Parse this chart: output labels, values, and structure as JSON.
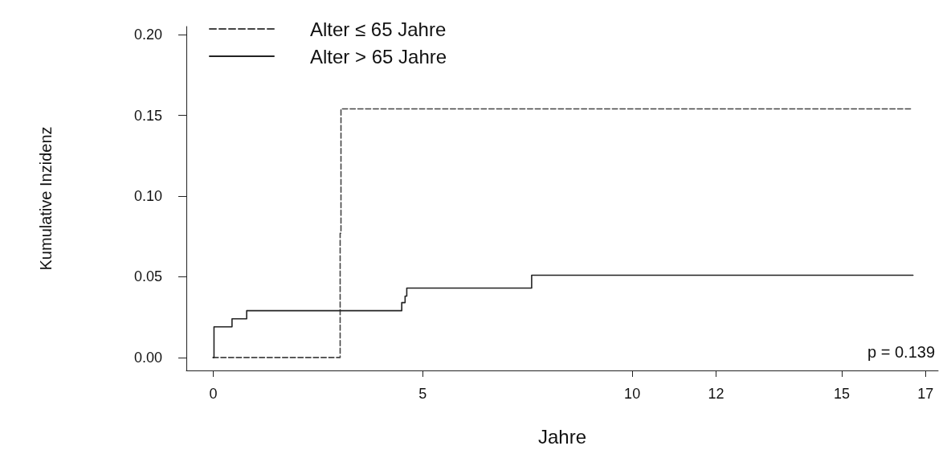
{
  "chart_data": {
    "type": "step",
    "xlabel": "Jahre",
    "ylabel": "Kumulative Inzidenz",
    "xlim": [
      -0.64,
      17.3
    ],
    "ylim": [
      -0.008,
      0.205
    ],
    "xticks": [
      0,
      5,
      10,
      12,
      15,
      17
    ],
    "yticks": [
      {
        "value": 0,
        "label": "0.00"
      },
      {
        "value": 0.05,
        "label": "0.05"
      },
      {
        "value": 0.1,
        "label": "0.10"
      },
      {
        "value": 0.15,
        "label": "0.15"
      },
      {
        "value": 0.2,
        "label": "0.20"
      }
    ],
    "grid": false,
    "legend": "top left",
    "marker": "none",
    "series": [
      {
        "name": "Alter ≤ 65 Jahre",
        "color": "#444444",
        "line_style": "dashed",
        "x": [
          0,
          3.03,
          3.05,
          16.7
        ],
        "values": [
          0,
          0.077,
          0.154,
          0.154
        ]
      },
      {
        "name": "Alter > 65 Jahre",
        "color": "#222222",
        "line_style": "solid",
        "x": [
          0,
          0.02,
          0.45,
          0.8,
          4.5,
          4.58,
          4.62,
          7.6,
          16.7
        ],
        "values": [
          0,
          0.019,
          0.024,
          0.029,
          0.034,
          0.038,
          0.043,
          0.051,
          0.051
        ]
      }
    ],
    "annotations": [
      "p = 0.139"
    ]
  }
}
